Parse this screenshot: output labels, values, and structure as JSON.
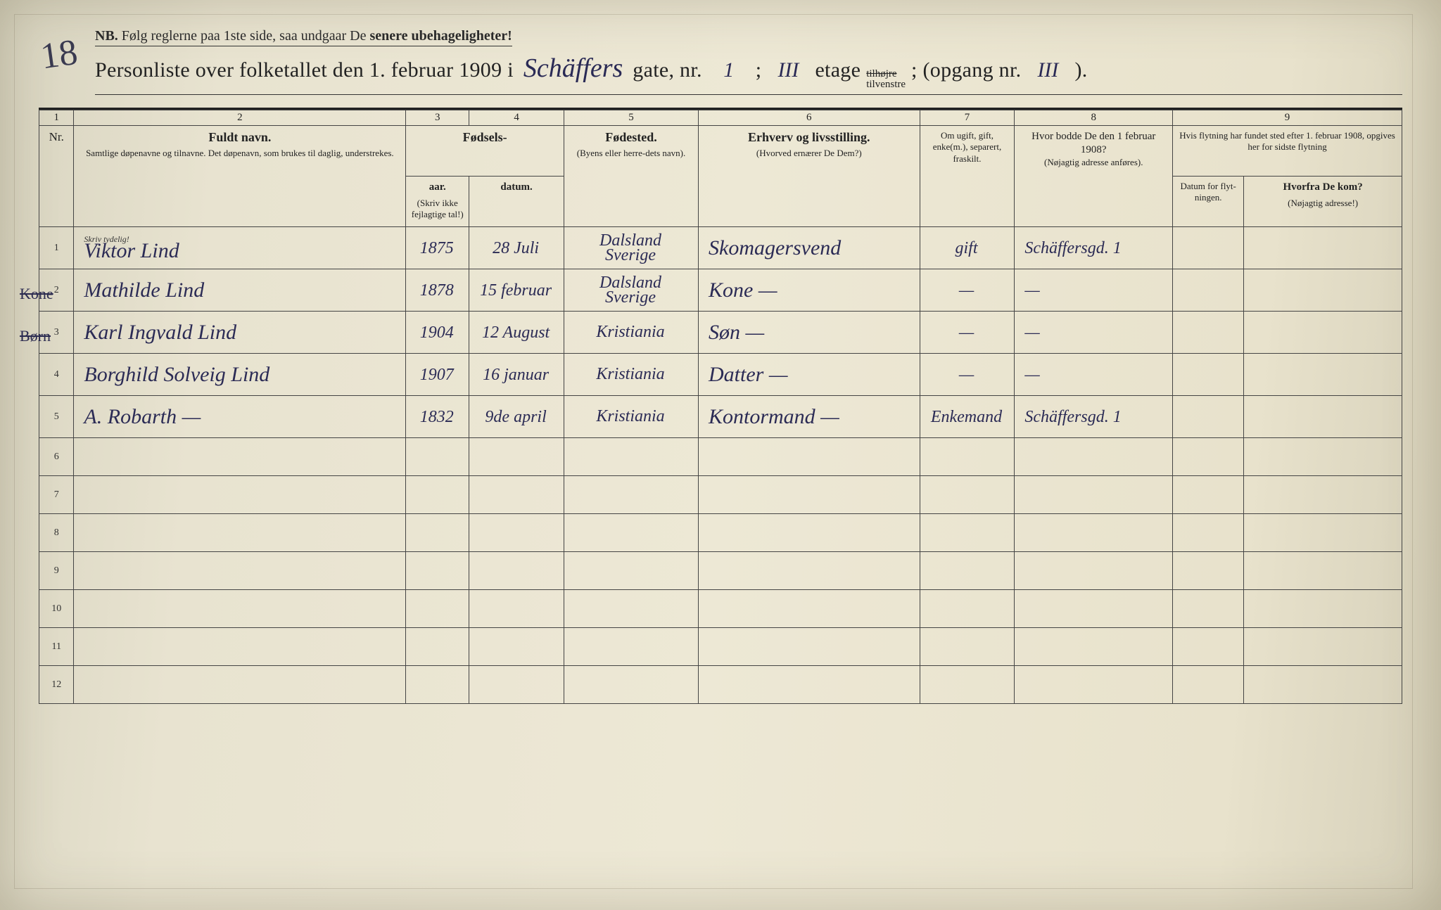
{
  "page_number_hw": "18",
  "nb": {
    "prefix_bold": "NB.",
    "text": "Følg reglerne paa 1ste side, saa undgaar De ",
    "suffix_bold": "senere ubehageligheter!"
  },
  "title": {
    "pre": "Personliste over folketallet den 1. februar 1909 i",
    "street_hw": "Schäffers",
    "gate_label": "gate, nr.",
    "gate_nr_hw": "1",
    "semicolon1": ";",
    "etage_hw": "III",
    "etage_label": "etage",
    "tilhojre_struck": "tilhøjre",
    "tilvenstre": "tilvenstre",
    "opgang_label": "; (opgang nr.",
    "opgang_hw": "III",
    "close": ")."
  },
  "columns": {
    "nums": [
      "1",
      "2",
      "3",
      "4",
      "5",
      "6",
      "7",
      "8",
      "9"
    ],
    "nr": "Nr.",
    "name_title": "Fuldt navn.",
    "name_sub": "Samtlige døpenavne og tilnavne. Det døpenavn, som brukes til daglig, understrekes.",
    "fodsels": "Fødsels-",
    "aar": "aar.",
    "datum": "datum.",
    "skriv_ikke": "(Skriv ikke fejlagtige tal!)",
    "fodested_title": "Fødested.",
    "fodested_sub": "(Byens eller herre-dets navn).",
    "erhverv_title": "Erhverv og livsstilling.",
    "erhverv_sub": "(Hvorved ernærer De Dem?)",
    "marital": "Om ugift, gift, enke(m.), separert, fraskilt.",
    "prev_addr_title": "Hvor bodde De den 1 februar 1908?",
    "prev_addr_sub": "(Nøjagtig adresse anføres).",
    "col9_top": "Hvis flytning har fundet sted efter 1. februar 1908, opgives her for sidste flytning",
    "move_date": "Datum for flyt-ningen.",
    "move_from_title": "Hvorfra De kom?",
    "move_from_sub": "(Nøjagtig adresse!)",
    "skriv_tydelig": "Skriv tydelig!"
  },
  "rows": [
    {
      "nr": "1",
      "strike": "",
      "name": "Viktor Lind",
      "year": "1875",
      "date": "28 Juli",
      "birthplace_l1": "Dalsland",
      "birthplace_l2": "Sverige",
      "occupation": "Skomagersvend",
      "marital": "gift",
      "prev_addr": "Schäffersgd. 1",
      "move_date": "",
      "move_from": ""
    },
    {
      "nr": "2",
      "strike": "Kone",
      "name": "Mathilde Lind",
      "year": "1878",
      "date": "15 februar",
      "birthplace_l1": "Dalsland",
      "birthplace_l2": "Sverige",
      "occupation": "Kone   —",
      "marital": "—",
      "prev_addr": "—",
      "move_date": "",
      "move_from": ""
    },
    {
      "nr": "3",
      "strike": "Børn",
      "name": "Karl Ingvald Lind",
      "year": "1904",
      "date": "12 August",
      "birthplace_l1": "Kristiania",
      "birthplace_l2": "",
      "occupation": "Søn   —",
      "marital": "—",
      "prev_addr": "—",
      "move_date": "",
      "move_from": ""
    },
    {
      "nr": "4",
      "strike": "",
      "name": "Borghild Solveig Lind",
      "year": "1907",
      "date": "16 januar",
      "birthplace_l1": "Kristiania",
      "birthplace_l2": "",
      "occupation": "Datter   —",
      "marital": "—",
      "prev_addr": "—",
      "move_date": "",
      "move_from": ""
    },
    {
      "nr": "5",
      "strike": "",
      "name": "A. Robarth   —",
      "year": "1832",
      "date": "9de april",
      "birthplace_l1": "Kristiania",
      "birthplace_l2": "",
      "occupation": "Kontormand   —",
      "marital": "Enkemand",
      "prev_addr": "Schäffersgd. 1",
      "move_date": "",
      "move_from": ""
    },
    {
      "nr": "6"
    },
    {
      "nr": "7"
    },
    {
      "nr": "8"
    },
    {
      "nr": "9"
    },
    {
      "nr": "10"
    },
    {
      "nr": "11"
    },
    {
      "nr": "12"
    }
  ],
  "colors": {
    "paper": "#e8e3d0",
    "ink_print": "#222222",
    "ink_hand": "#2b2b55",
    "rule": "#444444"
  }
}
